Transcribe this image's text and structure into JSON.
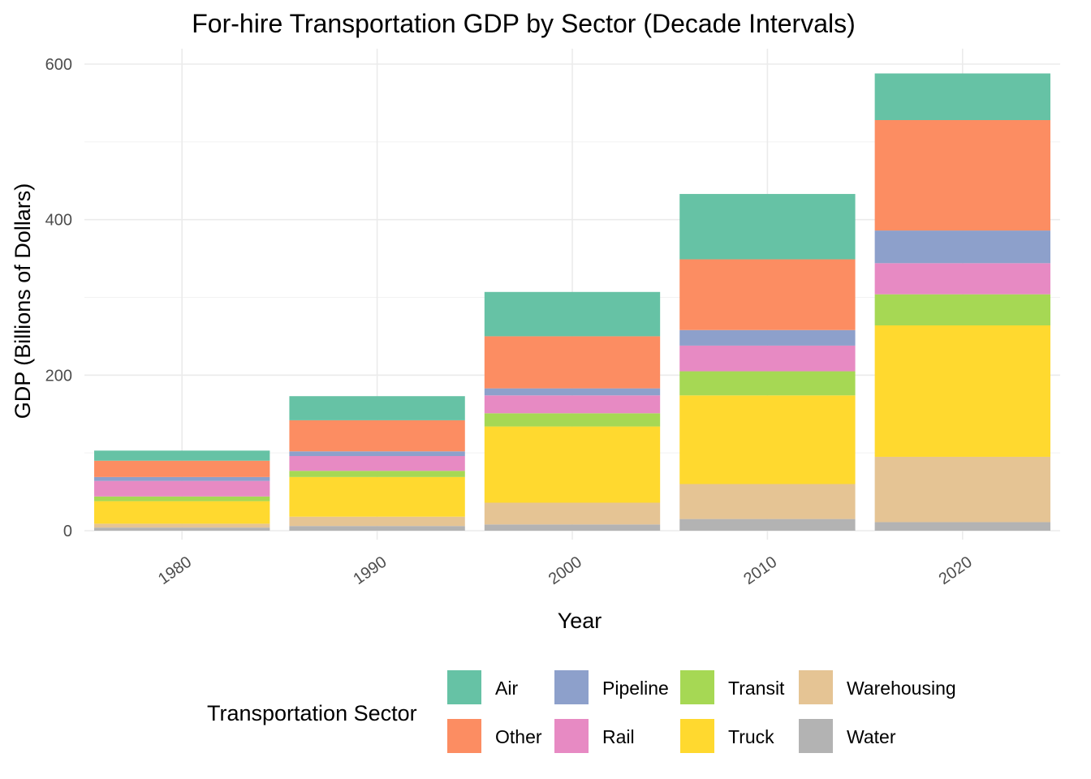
{
  "chart_data": {
    "type": "bar",
    "stacked": true,
    "title": "For-hire Transportation GDP by Sector (Decade Intervals)",
    "xlabel": "Year",
    "ylabel": "GDP (Billions of Dollars)",
    "ylim": [
      0,
      600
    ],
    "yticks": [
      0,
      200,
      400,
      600
    ],
    "grid": true,
    "legend_title": "Transportation Sector",
    "legend_position": "bottom",
    "categories": [
      "1980",
      "1990",
      "2000",
      "2010",
      "2020"
    ],
    "series": [
      {
        "name": "Water",
        "color": "#B3B3B3",
        "values": [
          4,
          6,
          8,
          15,
          11
        ]
      },
      {
        "name": "Warehousing",
        "color": "#E5C494",
        "values": [
          5,
          12,
          28,
          45,
          84
        ]
      },
      {
        "name": "Truck",
        "color": "#FFD92F",
        "values": [
          29,
          51,
          98,
          114,
          169
        ]
      },
      {
        "name": "Transit",
        "color": "#A6D854",
        "values": [
          6,
          8,
          17,
          31,
          40
        ]
      },
      {
        "name": "Rail",
        "color": "#E78AC3",
        "values": [
          20,
          19,
          23,
          33,
          40
        ]
      },
      {
        "name": "Pipeline",
        "color": "#8DA0CB",
        "values": [
          5,
          6,
          9,
          20,
          42
        ]
      },
      {
        "name": "Other",
        "color": "#FC8D62",
        "values": [
          21,
          40,
          67,
          91,
          142
        ]
      },
      {
        "name": "Air",
        "color": "#66C2A5",
        "values": [
          13,
          31,
          57,
          84,
          60
        ]
      }
    ],
    "legend_order": [
      "Air",
      "Other",
      "Pipeline",
      "Rail",
      "Transit",
      "Truck",
      "Warehousing",
      "Water"
    ]
  }
}
